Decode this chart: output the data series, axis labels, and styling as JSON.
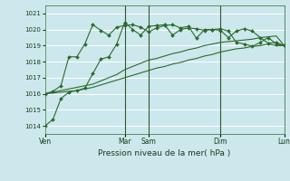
{
  "title": "",
  "xlabel": "Pression niveau de la mer( hPa )",
  "bg_color": "#cce8ec",
  "grid_color": "#ffffff",
  "line_color": "#2d6a2d",
  "ylim": [
    1013.5,
    1021.5
  ],
  "yticks": [
    1014,
    1015,
    1016,
    1017,
    1018,
    1019,
    1020,
    1021
  ],
  "xtick_labels": [
    "Ven",
    "Mar",
    "Sam",
    "Dim",
    "Lun"
  ],
  "xtick_positions": [
    0,
    10,
    13,
    22,
    30
  ],
  "vlines": [
    10,
    13,
    22,
    30
  ],
  "series": [
    [
      1014.0,
      1014.4,
      1015.7,
      1016.1,
      1016.2,
      1016.35,
      1017.25,
      1018.15,
      1018.3,
      1019.1,
      1020.45,
      1020.0,
      1019.65,
      1020.2,
      1020.25,
      1020.3,
      1019.65,
      1020.0,
      1020.1,
      1020.05,
      1019.95,
      1020.0,
      1019.95,
      1019.5,
      1019.9,
      1020.05,
      1019.9,
      1019.5,
      1019.15,
      1019.2,
      1019.0
    ],
    [
      1016.0,
      1016.1,
      1016.2,
      1016.3,
      1016.4,
      1016.5,
      1016.6,
      1016.8,
      1017.0,
      1017.2,
      1017.5,
      1017.7,
      1017.9,
      1018.1,
      1018.2,
      1018.35,
      1018.5,
      1018.6,
      1018.75,
      1018.85,
      1019.0,
      1019.1,
      1019.2,
      1019.25,
      1019.3,
      1019.35,
      1019.4,
      1019.5,
      1019.55,
      1019.6,
      1019.0
    ],
    [
      1016.0,
      1016.05,
      1016.1,
      1016.15,
      1016.2,
      1016.3,
      1016.4,
      1016.55,
      1016.7,
      1016.85,
      1017.0,
      1017.15,
      1017.3,
      1017.45,
      1017.6,
      1017.7,
      1017.85,
      1017.95,
      1018.1,
      1018.2,
      1018.35,
      1018.45,
      1018.6,
      1018.7,
      1018.8,
      1018.85,
      1018.95,
      1019.0,
      1019.1,
      1019.0,
      1019.0
    ],
    [
      1016.0,
      1016.15,
      1016.5,
      1018.3,
      1018.3,
      1019.1,
      1020.3,
      1019.95,
      1019.65,
      1020.15,
      1020.25,
      1020.3,
      1020.15,
      1019.85,
      1020.1,
      1020.25,
      1020.3,
      1020.1,
      1020.2,
      1019.45,
      1020.0,
      1020.0,
      1020.05,
      1019.9,
      1019.2,
      1019.1,
      1018.95,
      1019.2,
      1019.5,
      1019.1,
      1019.0
    ]
  ],
  "marker_series": [
    0,
    3
  ],
  "n_points": 31
}
